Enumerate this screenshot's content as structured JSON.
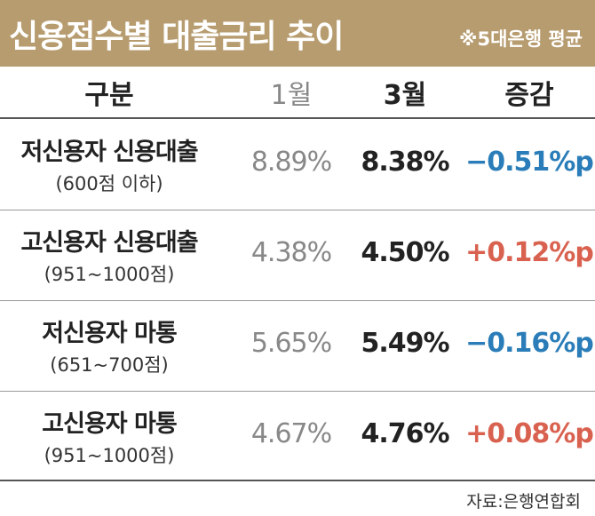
{
  "header": {
    "title": "신용점수별 대출금리 추이",
    "subtitle": "※5대은행 평균"
  },
  "table": {
    "columns": [
      "구분",
      "1월",
      "3월",
      "증감"
    ],
    "rows": [
      {
        "label": "저신용자 신용대출",
        "sublabel": "(600점 이하)",
        "jan": "8.89%",
        "mar": "8.38%",
        "change": "−0.51%p",
        "direction": "down"
      },
      {
        "label": "고신용자 신용대출",
        "sublabel": "(951~1000점)",
        "jan": "4.38%",
        "mar": "4.50%",
        "change": "+0.12%p",
        "direction": "up"
      },
      {
        "label": "저신용자 마통",
        "sublabel": "(651~700점)",
        "jan": "5.65%",
        "mar": "5.49%",
        "change": "−0.16%p",
        "direction": "down"
      },
      {
        "label": "고신용자 마통",
        "sublabel": "(951~1000점)",
        "jan": "4.67%",
        "mar": "4.76%",
        "change": "+0.08%p",
        "direction": "up"
      }
    ]
  },
  "source": "자료:은행연합회"
}
